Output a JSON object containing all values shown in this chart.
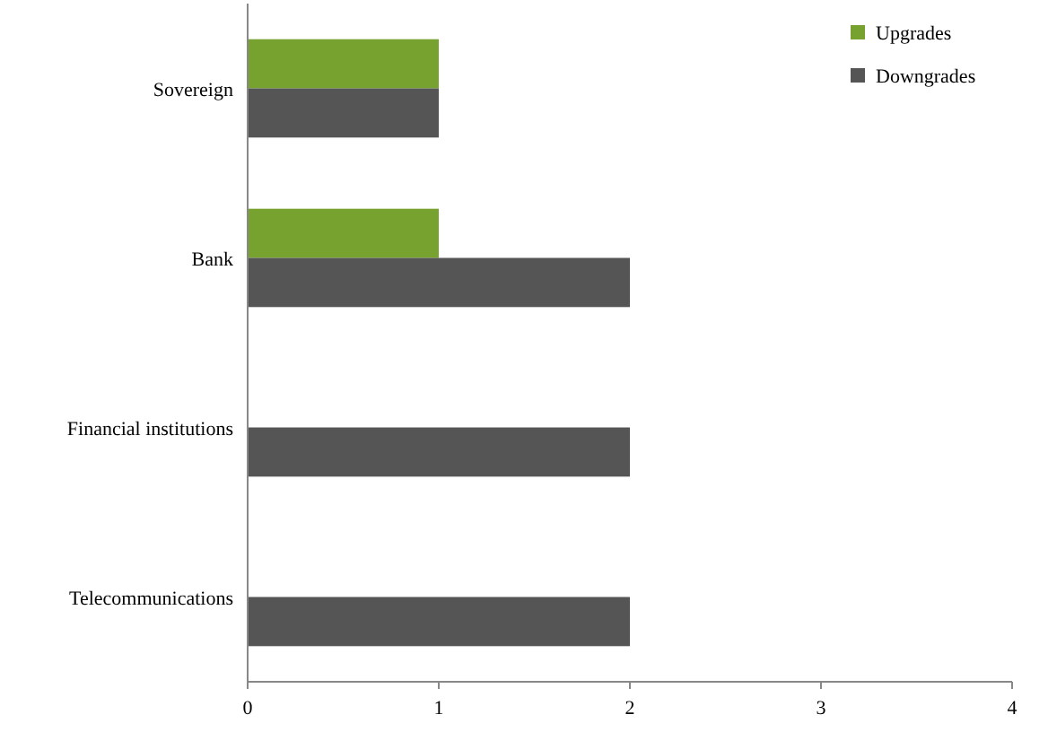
{
  "chart_data": {
    "type": "bar",
    "orientation": "horizontal",
    "categories": [
      "Sovereign",
      "Bank",
      "Financial institutions",
      "Telecommunications"
    ],
    "series": [
      {
        "name": "Upgrades",
        "color": "#77a22f",
        "values": [
          1,
          1,
          null,
          null
        ]
      },
      {
        "name": "Downgrades",
        "color": "#555555",
        "values": [
          1,
          2,
          2,
          2
        ]
      }
    ],
    "xlim": [
      0,
      4
    ],
    "xticks": [
      0,
      1,
      2,
      3,
      4
    ],
    "legend": "top right",
    "grid": false
  }
}
